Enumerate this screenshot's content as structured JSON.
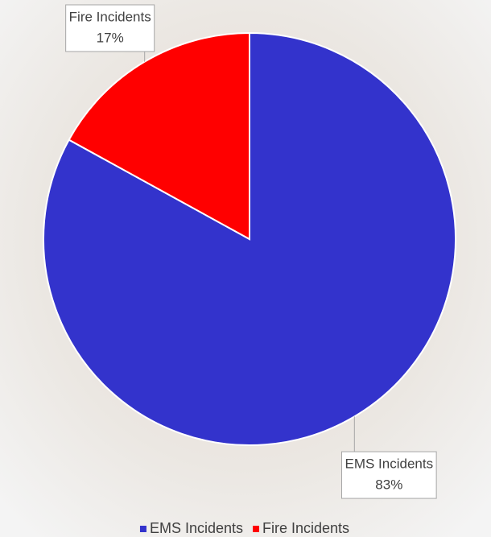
{
  "chart_data": {
    "type": "pie",
    "categories": [
      "EMS Incidents",
      "Fire Incidents"
    ],
    "values": [
      83,
      17
    ],
    "value_labels": [
      "83%",
      "17%"
    ],
    "colors": [
      "#3333cc",
      "#ff0000"
    ],
    "legend": "bottom"
  }
}
